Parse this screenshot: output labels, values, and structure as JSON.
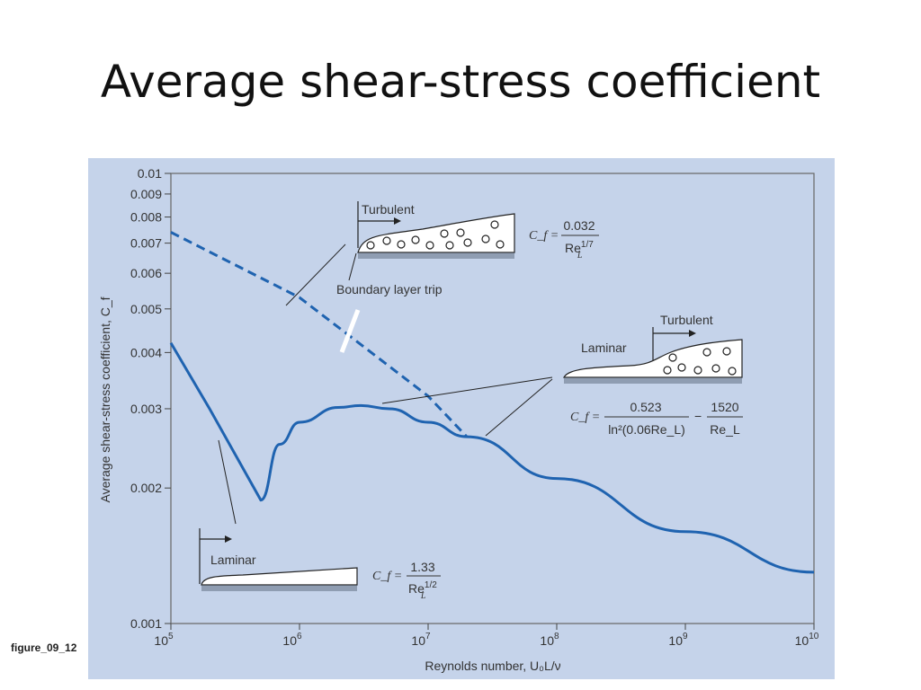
{
  "slide": {
    "title": "Average shear-stress coefficient",
    "caption": "figure_09_12"
  },
  "chart_data": {
    "type": "line",
    "xlabel": "Reynolds number, U₀L/ν",
    "ylabel": "Average shear-stress coefficient, C_f",
    "xscale": "log",
    "yscale": "log",
    "xlim": [
      100000,
      10000000000
    ],
    "ylim": [
      0.001,
      0.01
    ],
    "x_ticks": [
      100000,
      1000000,
      10000000,
      100000000,
      1000000000,
      10000000000
    ],
    "x_tick_labels": [
      {
        "base": "10",
        "exp": "5"
      },
      {
        "base": "10",
        "exp": "6"
      },
      {
        "base": "10",
        "exp": "7"
      },
      {
        "base": "10",
        "exp": "8"
      },
      {
        "base": "10",
        "exp": "9"
      },
      {
        "base": "10",
        "exp": "10"
      }
    ],
    "y_ticks": [
      0.001,
      0.002,
      0.003,
      0.004,
      0.005,
      0.006,
      0.007,
      0.008,
      0.009,
      0.01
    ],
    "y_tick_labels": [
      "0.001",
      "0.002",
      "0.003",
      "0.004",
      "0.005",
      "0.006",
      "0.007",
      "0.008",
      "0.009",
      "0.01"
    ],
    "series": [
      {
        "style": "solid",
        "x": [
          100000,
          200000,
          500000,
          700000,
          1000000,
          2000000,
          3000000,
          5000000,
          10000000,
          20000000,
          100000000,
          1000000000,
          10000000000
        ],
        "y": [
          0.0042,
          0.003,
          0.00188,
          0.0025,
          0.0028,
          0.00302,
          0.00305,
          0.003,
          0.0028,
          0.0026,
          0.0021,
          0.0016,
          0.0013
        ]
      },
      {
        "style": "dashed",
        "x": [
          100000,
          1000000,
          10000000,
          20000000
        ],
        "y": [
          0.0074,
          0.0053,
          0.0032,
          0.0026
        ]
      }
    ],
    "annotations": {
      "turbulent_top": "Turbulent",
      "trip": "Boundary layer trip",
      "turb_eq": {
        "lhs": "C_f =",
        "num": "0.032",
        "den_base": "Re",
        "den_sub": "L",
        "den_sup": "1/7"
      },
      "laminar_mid": "Laminar",
      "turbulent_mid": "Turbulent",
      "mixed_eq": {
        "lhs": "C_f =",
        "num1": "0.523",
        "den1": "ln²(0.06Re_L)",
        "minus": "−",
        "num2": "1520",
        "den2": "Re_L"
      },
      "laminar_bottom": "Laminar",
      "lam_eq": {
        "lhs": "C_f =",
        "num": "1.33",
        "den_base": "Re",
        "den_sub": "L",
        "den_sup": "1/2"
      }
    }
  }
}
